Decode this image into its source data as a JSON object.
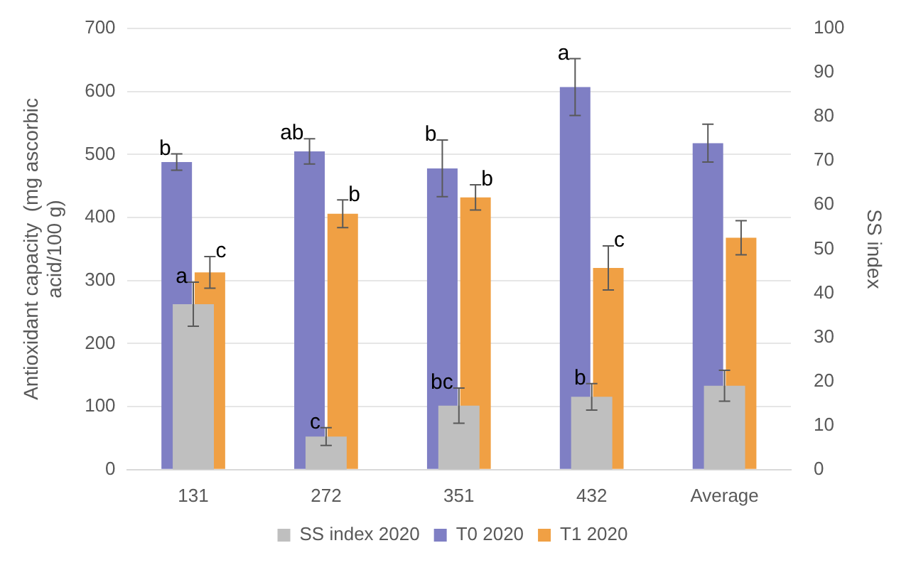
{
  "chart_data": {
    "type": "bar",
    "ylabel": "Antioxidant capacity  (mg ascorbic acid/100 g)",
    "y2label": "SS index",
    "categories": [
      "131",
      "272",
      "351",
      "432",
      "Average"
    ],
    "series": [
      {
        "name": "T0 2020",
        "color": "#7f7fc4",
        "values": [
          488,
          505,
          478,
          607,
          518
        ],
        "errors": [
          13,
          20,
          45,
          45,
          30
        ],
        "value_labels": [
          "b",
          "ab",
          "b",
          "a",
          null
        ]
      },
      {
        "name": "T1 2020",
        "color": "#f0a044",
        "values": [
          313,
          406,
          432,
          320,
          368
        ],
        "errors": [
          25,
          22,
          20,
          35,
          27
        ],
        "value_labels": [
          "c",
          "b",
          "b",
          "c",
          null
        ]
      },
      {
        "name": "SS index 2020",
        "color": "#bfbfbf",
        "axis": "y2",
        "values": [
          37.5,
          7.5,
          14.5,
          16.5,
          19
        ],
        "errors": [
          5,
          2,
          4,
          3,
          3.5
        ],
        "value_labels": [
          "a",
          "c",
          "bc",
          "b",
          null
        ]
      }
    ],
    "ylim": [
      0,
      700
    ],
    "yticks": [
      0,
      100,
      200,
      300,
      400,
      500,
      600,
      700
    ],
    "y2lim": [
      0,
      100
    ],
    "y2ticks": [
      0,
      10,
      20,
      30,
      40,
      50,
      60,
      70,
      80,
      90,
      100
    ],
    "grid": "y",
    "legend": "bottom"
  }
}
